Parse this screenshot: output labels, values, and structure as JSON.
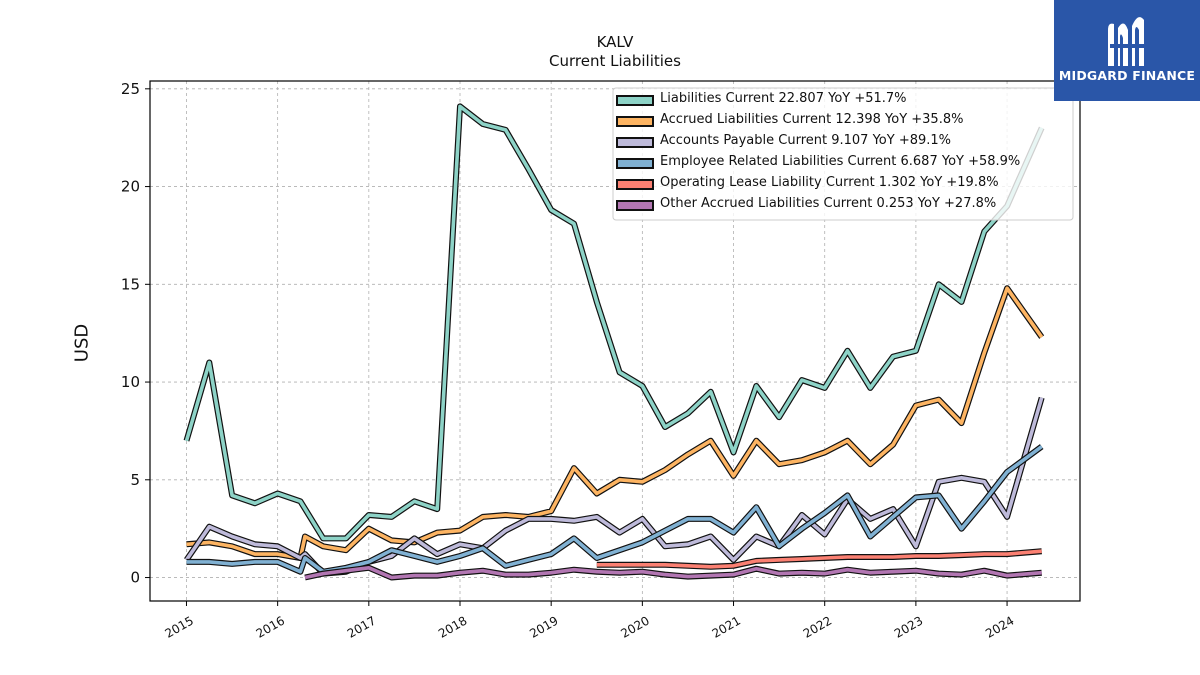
{
  "brand": {
    "logo_text": "MIDGARD FINANCE",
    "logo_icon": "midgard-m-logo-icon",
    "background": "#2a56a8"
  },
  "chart_data": {
    "type": "line",
    "title": "KALV",
    "subtitle": "Current  Liabilities",
    "xlabel": "",
    "ylabel": "USD",
    "xlim": [
      2014.6,
      2024.8
    ],
    "ylim": [
      -1.2,
      25.4
    ],
    "yticks": [
      0,
      5,
      10,
      15,
      20,
      25
    ],
    "xticks": [
      "2015",
      "2016",
      "2017",
      "2018",
      "2019",
      "2020",
      "2021",
      "2022",
      "2023",
      "2024"
    ],
    "grid": true,
    "legend_position": "top-right",
    "series": [
      {
        "name": "Liabilities Current",
        "legend_label": "Liabilities Current  22.807 YoY +51.7%",
        "color": "#8dd3c7",
        "points": [
          [
            2015.0,
            7.0
          ],
          [
            2015.25,
            11.0
          ],
          [
            2015.5,
            4.2
          ],
          [
            2015.75,
            3.8
          ],
          [
            2016.0,
            4.3
          ],
          [
            2016.25,
            3.9
          ],
          [
            2016.5,
            2.0
          ],
          [
            2016.75,
            2.0
          ],
          [
            2017.0,
            3.2
          ],
          [
            2017.25,
            3.1
          ],
          [
            2017.5,
            3.9
          ],
          [
            2017.75,
            3.5
          ],
          [
            2018.0,
            24.1
          ],
          [
            2018.25,
            23.2
          ],
          [
            2018.5,
            22.9
          ],
          [
            2018.75,
            20.9
          ],
          [
            2019.0,
            18.8
          ],
          [
            2019.25,
            18.1
          ],
          [
            2019.5,
            14.1
          ],
          [
            2019.75,
            10.5
          ],
          [
            2020.0,
            9.8
          ],
          [
            2020.25,
            7.7
          ],
          [
            2020.5,
            8.4
          ],
          [
            2020.75,
            9.5
          ],
          [
            2021.0,
            6.4
          ],
          [
            2021.25,
            9.8
          ],
          [
            2021.5,
            8.2
          ],
          [
            2021.75,
            10.1
          ],
          [
            2022.0,
            9.7
          ],
          [
            2022.25,
            11.6
          ],
          [
            2022.5,
            9.7
          ],
          [
            2022.75,
            11.3
          ],
          [
            2023.0,
            11.6
          ],
          [
            2023.25,
            15.0
          ],
          [
            2023.5,
            14.1
          ],
          [
            2023.75,
            17.7
          ],
          [
            2024.0,
            19.0
          ],
          [
            2024.38,
            23.0
          ]
        ]
      },
      {
        "name": "Accrued Liabilities Current",
        "legend_label": "Accrued Liabilities Current  12.398 YoY +35.8%",
        "color": "#fdb462",
        "points": [
          [
            2015.0,
            1.7
          ],
          [
            2015.25,
            1.8
          ],
          [
            2015.5,
            1.6
          ],
          [
            2015.75,
            1.2
          ],
          [
            2016.0,
            1.2
          ],
          [
            2016.25,
            1.0
          ],
          [
            2016.3,
            2.1
          ],
          [
            2016.5,
            1.6
          ],
          [
            2016.75,
            1.4
          ],
          [
            2017.0,
            2.5
          ],
          [
            2017.25,
            1.9
          ],
          [
            2017.5,
            1.8
          ],
          [
            2017.75,
            2.3
          ],
          [
            2018.0,
            2.4
          ],
          [
            2018.25,
            3.1
          ],
          [
            2018.5,
            3.2
          ],
          [
            2018.75,
            3.1
          ],
          [
            2019.0,
            3.4
          ],
          [
            2019.25,
            5.6
          ],
          [
            2019.5,
            4.3
          ],
          [
            2019.75,
            5.0
          ],
          [
            2020.0,
            4.9
          ],
          [
            2020.25,
            5.5
          ],
          [
            2020.5,
            6.3
          ],
          [
            2020.75,
            7.0
          ],
          [
            2021.0,
            5.2
          ],
          [
            2021.25,
            7.0
          ],
          [
            2021.5,
            5.8
          ],
          [
            2021.75,
            6.0
          ],
          [
            2022.0,
            6.4
          ],
          [
            2022.25,
            7.0
          ],
          [
            2022.5,
            5.8
          ],
          [
            2022.75,
            6.8
          ],
          [
            2023.0,
            8.8
          ],
          [
            2023.25,
            9.1
          ],
          [
            2023.5,
            7.9
          ],
          [
            2023.75,
            11.5
          ],
          [
            2024.0,
            14.8
          ],
          [
            2024.38,
            12.3
          ]
        ]
      },
      {
        "name": "Accounts Payable Current",
        "legend_label": "Accounts Payable Current  9.107 YoY +89.1%",
        "color": "#bebada",
        "points": [
          [
            2015.0,
            0.9
          ],
          [
            2015.25,
            2.6
          ],
          [
            2015.5,
            2.1
          ],
          [
            2015.75,
            1.7
          ],
          [
            2016.0,
            1.6
          ],
          [
            2016.25,
            1.0
          ],
          [
            2016.3,
            1.2
          ],
          [
            2016.5,
            0.2
          ],
          [
            2016.75,
            0.3
          ],
          [
            2017.0,
            0.8
          ],
          [
            2017.25,
            1.1
          ],
          [
            2017.5,
            2.0
          ],
          [
            2017.75,
            1.2
          ],
          [
            2018.0,
            1.7
          ],
          [
            2018.25,
            1.5
          ],
          [
            2018.5,
            2.4
          ],
          [
            2018.75,
            3.0
          ],
          [
            2019.0,
            3.0
          ],
          [
            2019.25,
            2.9
          ],
          [
            2019.5,
            3.1
          ],
          [
            2019.75,
            2.3
          ],
          [
            2020.0,
            3.0
          ],
          [
            2020.25,
            1.6
          ],
          [
            2020.5,
            1.7
          ],
          [
            2020.75,
            2.1
          ],
          [
            2021.0,
            0.9
          ],
          [
            2021.25,
            2.1
          ],
          [
            2021.5,
            1.6
          ],
          [
            2021.75,
            3.2
          ],
          [
            2022.0,
            2.2
          ],
          [
            2022.25,
            4.0
          ],
          [
            2022.5,
            3.0
          ],
          [
            2022.75,
            3.5
          ],
          [
            2023.0,
            1.6
          ],
          [
            2023.25,
            4.9
          ],
          [
            2023.5,
            5.1
          ],
          [
            2023.75,
            4.9
          ],
          [
            2024.0,
            3.1
          ],
          [
            2024.38,
            9.2
          ]
        ]
      },
      {
        "name": "Employee Related Liabilities Current",
        "legend_label": "Employee Related Liabilities Current  6.687 YoY +58.9%",
        "color": "#80b1d3",
        "points": [
          [
            2015.0,
            0.8
          ],
          [
            2015.25,
            0.8
          ],
          [
            2015.5,
            0.7
          ],
          [
            2015.75,
            0.8
          ],
          [
            2016.0,
            0.8
          ],
          [
            2016.25,
            0.3
          ],
          [
            2016.3,
            1.0
          ],
          [
            2016.5,
            0.3
          ],
          [
            2016.75,
            0.5
          ],
          [
            2017.0,
            0.8
          ],
          [
            2017.25,
            1.4
          ],
          [
            2017.5,
            1.1
          ],
          [
            2017.75,
            0.8
          ],
          [
            2018.0,
            1.1
          ],
          [
            2018.25,
            1.5
          ],
          [
            2018.5,
            0.6
          ],
          [
            2018.75,
            0.9
          ],
          [
            2019.0,
            1.2
          ],
          [
            2019.25,
            2.0
          ],
          [
            2019.5,
            1.0
          ],
          [
            2019.75,
            1.4
          ],
          [
            2020.0,
            1.8
          ],
          [
            2020.25,
            2.4
          ],
          [
            2020.5,
            3.0
          ],
          [
            2020.75,
            3.0
          ],
          [
            2021.0,
            2.3
          ],
          [
            2021.25,
            3.6
          ],
          [
            2021.5,
            1.6
          ],
          [
            2021.75,
            2.5
          ],
          [
            2022.0,
            3.3
          ],
          [
            2022.25,
            4.2
          ],
          [
            2022.5,
            2.1
          ],
          [
            2022.75,
            3.1
          ],
          [
            2023.0,
            4.1
          ],
          [
            2023.25,
            4.2
          ],
          [
            2023.5,
            2.5
          ],
          [
            2023.75,
            3.9
          ],
          [
            2024.0,
            5.4
          ],
          [
            2024.38,
            6.7
          ]
        ]
      },
      {
        "name": "Operating Lease Liability Current",
        "legend_label": "Operating Lease Liability Current  1.302 YoY +19.8%",
        "color": "#fb8072",
        "points": [
          [
            2019.5,
            0.65
          ],
          [
            2019.75,
            0.65
          ],
          [
            2020.0,
            0.65
          ],
          [
            2020.25,
            0.65
          ],
          [
            2020.5,
            0.6
          ],
          [
            2020.75,
            0.55
          ],
          [
            2021.0,
            0.6
          ],
          [
            2021.25,
            0.85
          ],
          [
            2021.5,
            0.9
          ],
          [
            2021.75,
            0.95
          ],
          [
            2022.0,
            1.0
          ],
          [
            2022.25,
            1.05
          ],
          [
            2022.5,
            1.05
          ],
          [
            2022.75,
            1.05
          ],
          [
            2023.0,
            1.1
          ],
          [
            2023.25,
            1.1
          ],
          [
            2023.5,
            1.15
          ],
          [
            2023.75,
            1.2
          ],
          [
            2024.0,
            1.2
          ],
          [
            2024.38,
            1.35
          ]
        ]
      },
      {
        "name": "Other Accrued Liabilities Current",
        "legend_label": "Other Accrued Liabilities Current  0.253 YoY +27.8%",
        "color": "#b276b2",
        "points": [
          [
            2016.3,
            0.0
          ],
          [
            2016.5,
            0.2
          ],
          [
            2016.75,
            0.35
          ],
          [
            2017.0,
            0.5
          ],
          [
            2017.25,
            0.0
          ],
          [
            2017.5,
            0.1
          ],
          [
            2017.75,
            0.1
          ],
          [
            2018.0,
            0.25
          ],
          [
            2018.25,
            0.35
          ],
          [
            2018.5,
            0.15
          ],
          [
            2018.75,
            0.15
          ],
          [
            2019.0,
            0.25
          ],
          [
            2019.25,
            0.4
          ],
          [
            2019.5,
            0.3
          ],
          [
            2019.75,
            0.25
          ],
          [
            2020.0,
            0.3
          ],
          [
            2020.25,
            0.15
          ],
          [
            2020.5,
            0.05
          ],
          [
            2020.75,
            0.1
          ],
          [
            2021.0,
            0.15
          ],
          [
            2021.25,
            0.45
          ],
          [
            2021.5,
            0.2
          ],
          [
            2021.75,
            0.25
          ],
          [
            2022.0,
            0.2
          ],
          [
            2022.25,
            0.4
          ],
          [
            2022.5,
            0.25
          ],
          [
            2022.75,
            0.3
          ],
          [
            2023.0,
            0.35
          ],
          [
            2023.25,
            0.2
          ],
          [
            2023.5,
            0.15
          ],
          [
            2023.75,
            0.35
          ],
          [
            2024.0,
            0.1
          ],
          [
            2024.38,
            0.25
          ]
        ]
      }
    ]
  }
}
